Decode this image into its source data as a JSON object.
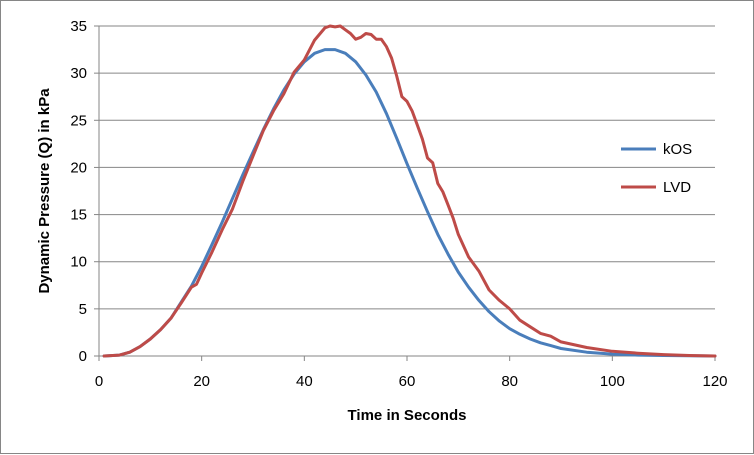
{
  "chart_data": {
    "type": "line",
    "title": "",
    "xlabel": "Time in Seconds",
    "ylabel": "Dynamic Pressure (Q) in kPa",
    "xlim": [
      0,
      120
    ],
    "ylim": [
      0,
      35
    ],
    "xticks": [
      0,
      20,
      40,
      60,
      80,
      100,
      120
    ],
    "yticks": [
      0,
      5,
      10,
      15,
      20,
      25,
      30,
      35
    ],
    "grid": "horizontal",
    "legend_position": "right",
    "series": [
      {
        "name": "kOS",
        "color": "#4a7ebb",
        "x": [
          1,
          4,
          6,
          8,
          10,
          12,
          14,
          16,
          18,
          20,
          22,
          24,
          26,
          28,
          30,
          32,
          34,
          36,
          38,
          40,
          42,
          44,
          46,
          48,
          50,
          52,
          54,
          56,
          58,
          60,
          62,
          64,
          66,
          68,
          70,
          72,
          74,
          76,
          78,
          80,
          82,
          84,
          86,
          88,
          90,
          95,
          100,
          105,
          110,
          115,
          120
        ],
        "y": [
          0,
          0.1,
          0.4,
          1.0,
          1.8,
          2.8,
          4.0,
          5.7,
          7.4,
          9.5,
          11.8,
          14.2,
          16.7,
          19.2,
          21.6,
          24.0,
          26.2,
          28.2,
          29.9,
          31.2,
          32.1,
          32.5,
          32.5,
          32.1,
          31.2,
          29.8,
          28.0,
          25.7,
          23.1,
          20.4,
          17.8,
          15.3,
          12.9,
          10.8,
          8.9,
          7.3,
          5.9,
          4.7,
          3.7,
          2.9,
          2.3,
          1.8,
          1.4,
          1.1,
          0.8,
          0.4,
          0.2,
          0.1,
          0.05,
          0.02,
          0
        ]
      },
      {
        "name": "LVD",
        "color": "#be4b48",
        "x": [
          1,
          4,
          6,
          8,
          10,
          12,
          14,
          16,
          18,
          19,
          20,
          22,
          24,
          26,
          28,
          30,
          32,
          34,
          36,
          38,
          40,
          42,
          44,
          45,
          46,
          47,
          48,
          49,
          50,
          51,
          52,
          53,
          54,
          55,
          56,
          57,
          58,
          59,
          60,
          61,
          62,
          63,
          64,
          65,
          66,
          67,
          68,
          69,
          70,
          72,
          74,
          76,
          78,
          80,
          82,
          84,
          86,
          88,
          90,
          95,
          100,
          105,
          110,
          115,
          120
        ],
        "y": [
          0,
          0.1,
          0.4,
          1.0,
          1.8,
          2.8,
          4.0,
          5.6,
          7.3,
          7.6,
          8.8,
          11.0,
          13.4,
          15.6,
          18.5,
          21.2,
          23.9,
          26.0,
          27.8,
          30.1,
          31.4,
          33.5,
          34.8,
          35.0,
          34.9,
          35.0,
          34.6,
          34.2,
          33.6,
          33.8,
          34.2,
          34.1,
          33.6,
          33.6,
          32.8,
          31.6,
          29.7,
          27.5,
          27.0,
          26.0,
          24.5,
          23.0,
          21.0,
          20.5,
          18.3,
          17.4,
          16.0,
          14.6,
          12.9,
          10.5,
          9.0,
          7.0,
          5.9,
          5.0,
          3.8,
          3.1,
          2.4,
          2.1,
          1.5,
          0.9,
          0.5,
          0.3,
          0.15,
          0.05,
          0
        ]
      }
    ]
  }
}
